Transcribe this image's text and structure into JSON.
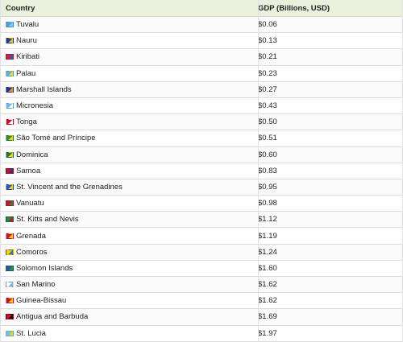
{
  "table": {
    "headers": {
      "country": "Country",
      "gdp": "GDP (Billions, USD)"
    },
    "rows": [
      {
        "country": "Tuvalu",
        "gdp": "$0.06",
        "flag_icon": "tuvalu-flag-icon",
        "flag_colors": [
          "#4aa3df",
          "#7ec8f0"
        ]
      },
      {
        "country": "Nauru",
        "gdp": "$0.13",
        "flag_icon": "nauru-flag-icon",
        "flag_colors": [
          "#1f3e8c",
          "#f5c400"
        ]
      },
      {
        "country": "Kiribati",
        "gdp": "$0.21",
        "flag_icon": "kiribati-flag-icon",
        "flag_colors": [
          "#d4213d",
          "#1d5fb0"
        ]
      },
      {
        "country": "Palau",
        "gdp": "$0.23",
        "flag_icon": "palau-flag-icon",
        "flag_colors": [
          "#56b3e6",
          "#f8d90f"
        ]
      },
      {
        "country": "Marshall Islands",
        "gdp": "$0.27",
        "flag_icon": "marshall-islands-flag-icon",
        "flag_colors": [
          "#1c3a8b",
          "#f18b2a"
        ]
      },
      {
        "country": "Micronesia",
        "gdp": "$0.43",
        "flag_icon": "micronesia-flag-icon",
        "flag_colors": [
          "#6fb9e8",
          "#ffffff"
        ]
      },
      {
        "country": "Tonga",
        "gdp": "$0.50",
        "flag_icon": "tonga-flag-icon",
        "flag_colors": [
          "#c6102f",
          "#ffffff"
        ]
      },
      {
        "country": "São Tomé and Príncipe",
        "gdp": "$0.51",
        "flag_icon": "sao-tome-and-principe-flag-icon",
        "flag_colors": [
          "#2e8b3a",
          "#f6d000"
        ]
      },
      {
        "country": "Dominica",
        "gdp": "$0.60",
        "flag_icon": "dominica-flag-icon",
        "flag_colors": [
          "#1f7a3a",
          "#f5d200"
        ]
      },
      {
        "country": "Samoa",
        "gdp": "$0.83",
        "flag_icon": "samoa-flag-icon",
        "flag_colors": [
          "#c8102e",
          "#1f3a8b"
        ]
      },
      {
        "country": "St. Vincent and the Grenadines",
        "gdp": "$0.95",
        "flag_icon": "st-vincent-and-the-grenadines-flag-icon",
        "flag_colors": [
          "#2a5bb5",
          "#f7d100"
        ]
      },
      {
        "country": "Vanuatu",
        "gdp": "$0.98",
        "flag_icon": "vanuatu-flag-icon",
        "flag_colors": [
          "#d21034",
          "#1a8d3f"
        ]
      },
      {
        "country": "St. Kitts and Nevis",
        "gdp": "$1.12",
        "flag_icon": "st-kitts-and-nevis-flag-icon",
        "flag_colors": [
          "#1a8d3f",
          "#d21034"
        ]
      },
      {
        "country": "Grenada",
        "gdp": "$1.19",
        "flag_icon": "grenada-flag-icon",
        "flag_colors": [
          "#d21034",
          "#f7d100"
        ]
      },
      {
        "country": "Comoros",
        "gdp": "$1.24",
        "flag_icon": "comoros-flag-icon",
        "flag_colors": [
          "#f7d100",
          "#3a75c4"
        ]
      },
      {
        "country": "Solomon Islands",
        "gdp": "$1.60",
        "flag_icon": "solomon-islands-flag-icon",
        "flag_colors": [
          "#215b9b",
          "#2f8f3a"
        ]
      },
      {
        "country": "San Marino",
        "gdp": "$1.62",
        "flag_icon": "san-marino-flag-icon",
        "flag_colors": [
          "#ffffff",
          "#6fb9e8"
        ]
      },
      {
        "country": "Guinea-Bissau",
        "gdp": "$1.62",
        "flag_icon": "guinea-bissau-flag-icon",
        "flag_colors": [
          "#ce1126",
          "#f7d100"
        ]
      },
      {
        "country": "Antigua and Barbuda",
        "gdp": "$1.69",
        "flag_icon": "antigua-and-barbuda-flag-icon",
        "flag_colors": [
          "#ce1126",
          "#111111"
        ]
      },
      {
        "country": "St. Lucia",
        "gdp": "$1.97",
        "flag_icon": "st-lucia-flag-icon",
        "flag_colors": [
          "#66c4f0",
          "#f7d100"
        ]
      }
    ]
  }
}
